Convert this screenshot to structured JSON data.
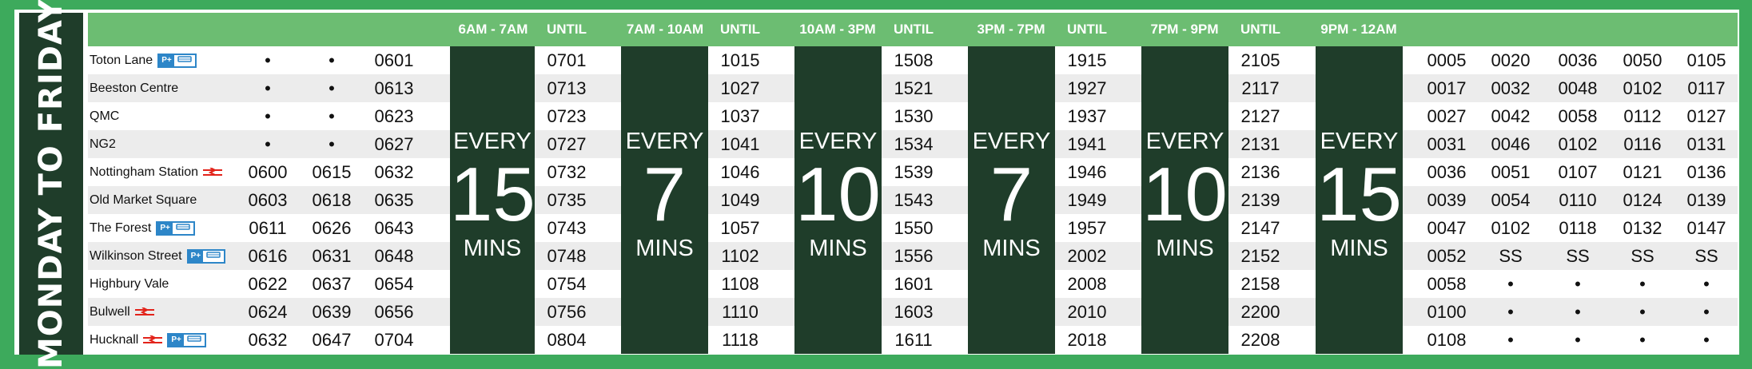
{
  "side_title": "MONDAY TO FRIDAY",
  "headers": [
    "6AM - 7AM",
    "UNTIL",
    "7AM - 10AM",
    "UNTIL",
    "10AM - 3PM",
    "UNTIL",
    "3PM - 7PM",
    "UNTIL",
    "7PM - 9PM",
    "UNTIL",
    "9PM - 12AM"
  ],
  "park_ride_label": "P+",
  "frequencies": [
    {
      "top": "EVERY",
      "num": "15",
      "bottom": "MINS"
    },
    {
      "top": "EVERY",
      "num": "7",
      "bottom": "MINS"
    },
    {
      "top": "EVERY",
      "num": "10",
      "bottom": "MINS"
    },
    {
      "top": "EVERY",
      "num": "7",
      "bottom": "MINS"
    },
    {
      "top": "EVERY",
      "num": "10",
      "bottom": "MINS"
    },
    {
      "top": "EVERY",
      "num": "15",
      "bottom": "MINS"
    }
  ],
  "icons": {
    "rail": "national-rail-icon",
    "park_ride": "park-and-ride-icon"
  },
  "colors": {
    "dark": "#1f3d2a",
    "header": "#6cbd72",
    "border": "#3daa5c",
    "rail": "#e2231a",
    "pr": "#2d86c8"
  },
  "rows": [
    {
      "stop": "Toton Lane",
      "rail": false,
      "pr": true,
      "early": [
        "•",
        "•",
        "0601"
      ],
      "until": [
        "0701",
        "1015",
        "1508",
        "1915",
        "2105"
      ],
      "late": [
        "0005",
        "0020",
        "0036",
        "0050",
        "0105"
      ]
    },
    {
      "stop": "Beeston Centre",
      "rail": false,
      "pr": false,
      "early": [
        "•",
        "•",
        "0613"
      ],
      "until": [
        "0713",
        "1027",
        "1521",
        "1927",
        "2117"
      ],
      "late": [
        "0017",
        "0032",
        "0048",
        "0102",
        "0117"
      ]
    },
    {
      "stop": "QMC",
      "rail": false,
      "pr": false,
      "early": [
        "•",
        "•",
        "0623"
      ],
      "until": [
        "0723",
        "1037",
        "1530",
        "1937",
        "2127"
      ],
      "late": [
        "0027",
        "0042",
        "0058",
        "0112",
        "0127"
      ]
    },
    {
      "stop": "NG2",
      "rail": false,
      "pr": false,
      "early": [
        "•",
        "•",
        "0627"
      ],
      "until": [
        "0727",
        "1041",
        "1534",
        "1941",
        "2131"
      ],
      "late": [
        "0031",
        "0046",
        "0102",
        "0116",
        "0131"
      ]
    },
    {
      "stop": "Nottingham Station",
      "rail": true,
      "pr": false,
      "early": [
        "0600",
        "0615",
        "0632"
      ],
      "until": [
        "0732",
        "1046",
        "1539",
        "1946",
        "2136"
      ],
      "late": [
        "0036",
        "0051",
        "0107",
        "0121",
        "0136"
      ]
    },
    {
      "stop": "Old Market Square",
      "rail": false,
      "pr": false,
      "early": [
        "0603",
        "0618",
        "0635"
      ],
      "until": [
        "0735",
        "1049",
        "1543",
        "1949",
        "2139"
      ],
      "late": [
        "0039",
        "0054",
        "0110",
        "0124",
        "0139"
      ]
    },
    {
      "stop": "The Forest",
      "rail": false,
      "pr": true,
      "early": [
        "0611",
        "0626",
        "0643"
      ],
      "until": [
        "0743",
        "1057",
        "1550",
        "1957",
        "2147"
      ],
      "late": [
        "0047",
        "0102",
        "0118",
        "0132",
        "0147"
      ]
    },
    {
      "stop": "Wilkinson Street",
      "rail": false,
      "pr": true,
      "early": [
        "0616",
        "0631",
        "0648"
      ],
      "until": [
        "0748",
        "1102",
        "1556",
        "2002",
        "2152"
      ],
      "late": [
        "0052",
        "SS",
        "SS",
        "SS",
        "SS"
      ]
    },
    {
      "stop": "Highbury Vale",
      "rail": false,
      "pr": false,
      "early": [
        "0622",
        "0637",
        "0654"
      ],
      "until": [
        "0754",
        "1108",
        "1601",
        "2008",
        "2158"
      ],
      "late": [
        "0058",
        "•",
        "•",
        "•",
        "•"
      ]
    },
    {
      "stop": "Bulwell",
      "rail": true,
      "pr": false,
      "early": [
        "0624",
        "0639",
        "0656"
      ],
      "until": [
        "0756",
        "1110",
        "1603",
        "2010",
        "2200"
      ],
      "late": [
        "0100",
        "•",
        "•",
        "•",
        "•"
      ]
    },
    {
      "stop": "Hucknall",
      "rail": true,
      "pr": true,
      "early": [
        "0632",
        "0647",
        "0704"
      ],
      "until": [
        "0804",
        "1118",
        "1611",
        "2018",
        "2208"
      ],
      "late": [
        "0108",
        "•",
        "•",
        "•",
        "•"
      ]
    }
  ]
}
